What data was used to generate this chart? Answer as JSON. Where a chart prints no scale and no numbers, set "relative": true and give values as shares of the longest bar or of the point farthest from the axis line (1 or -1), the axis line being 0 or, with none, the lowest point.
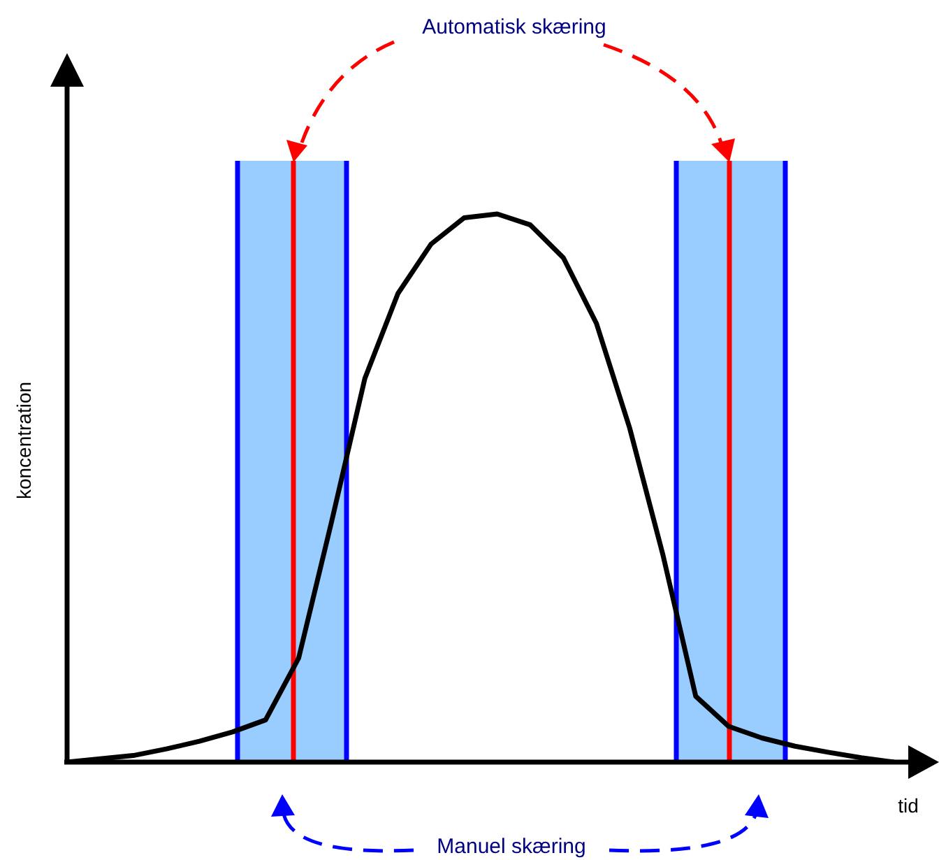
{
  "chart_data": {
    "type": "line",
    "xlabel": "tid",
    "ylabel": "koncentration",
    "relative": true,
    "marker": "none",
    "legend": false,
    "categories": [
      null,
      null,
      null,
      null,
      null,
      null,
      null,
      null,
      null,
      null,
      null,
      null,
      null,
      null,
      null,
      null,
      null,
      null,
      null,
      null,
      null,
      null,
      null,
      null,
      null,
      null
    ],
    "series": [
      {
        "color": "#000000",
        "values": [
          0,
          0.006,
          0.012,
          0.024,
          0.038,
          0.055,
          0.077,
          0.19,
          0.44,
          0.7,
          0.855,
          0.945,
          0.993,
          1,
          0.98,
          0.92,
          0.8,
          0.61,
          0.38,
          0.12,
          0.065,
          0.044,
          0.029,
          0.018,
          0.008,
          0
        ]
      }
    ],
    "annotations": [
      "Automatisk skæring",
      "Manuel skæring"
    ]
  }
}
